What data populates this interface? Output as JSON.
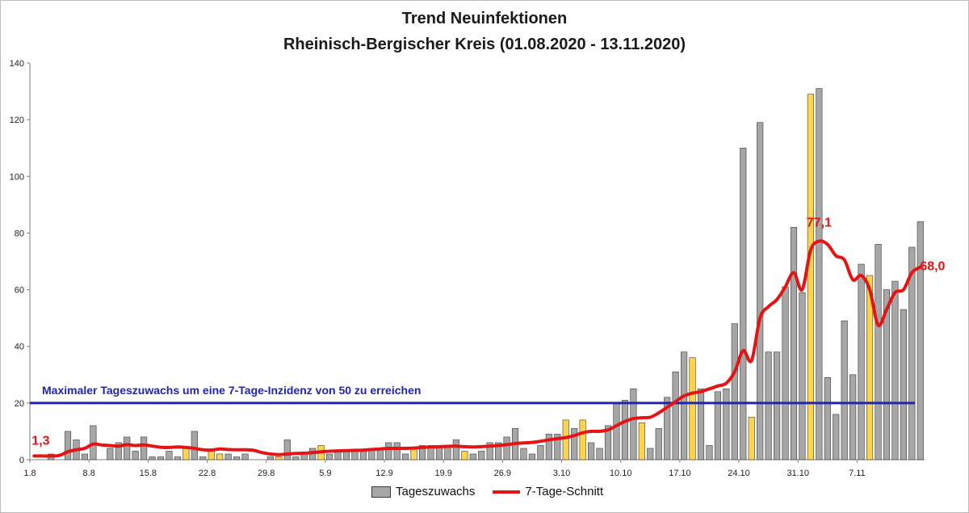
{
  "chart_data": {
    "type": "bar",
    "title": "Trend Neuinfektionen",
    "subtitle": "Rheinisch-Bergischer Kreis (01.08.2020 - 13.11.2020)",
    "ylim": [
      0,
      140
    ],
    "y_ticks": [
      "0",
      "20",
      "40",
      "60",
      "80",
      "100",
      "120",
      "140"
    ],
    "x_tick_labels": [
      "1.8",
      "8.8",
      "15.8",
      "22.8",
      "29.8",
      "5.9",
      "12.9",
      "19.9",
      "26.9",
      "3.10",
      "10.10",
      "17.10",
      "24.10",
      "31.10",
      "7.11"
    ],
    "x_tick_day_index": [
      0,
      7,
      14,
      21,
      28,
      35,
      42,
      49,
      56,
      63,
      70,
      77,
      84,
      91,
      98
    ],
    "x_start_date": "01.08.2020",
    "series": [
      {
        "name": "Tageszuwachs",
        "kind": "bar",
        "color": "#a6a6a6",
        "values": [
          0,
          0,
          2,
          0,
          10,
          7,
          2,
          12,
          0,
          4,
          6,
          8,
          3,
          8,
          1,
          1,
          3,
          1,
          4,
          10,
          1,
          3,
          2,
          2,
          1,
          2,
          0,
          0,
          1,
          1,
          7,
          1,
          2,
          4,
          5,
          2,
          3,
          3,
          3,
          3,
          4,
          4,
          6,
          6,
          2,
          4,
          5,
          5,
          5,
          5,
          7,
          3,
          2,
          3,
          6,
          6,
          8,
          11,
          4,
          2,
          5,
          9,
          9,
          14,
          11,
          14,
          6,
          4,
          12,
          20,
          21,
          25,
          13,
          4,
          11,
          22,
          31,
          38,
          36,
          25,
          5,
          24,
          25,
          48,
          110,
          15,
          119,
          38,
          38,
          61,
          82,
          59,
          129,
          131,
          29,
          16,
          49,
          30,
          69,
          65,
          76,
          60,
          63,
          53,
          75,
          84
        ]
      },
      {
        "name": "7-Tage-Schnitt",
        "kind": "line",
        "color": "#e31414",
        "values": [
          1.3,
          1.3,
          1.3,
          1.5,
          2.8,
          3.5,
          4.0,
          5.5,
          5.2,
          5.0,
          4.8,
          5.3,
          5.0,
          5.2,
          4.8,
          4.4,
          4.3,
          4.5,
          4.3,
          4.0,
          3.5,
          3.4,
          3.8,
          3.6,
          3.5,
          3.5,
          3.3,
          2.5,
          2.0,
          1.8,
          2.0,
          2.2,
          2.3,
          2.5,
          2.8,
          3.0,
          3.1,
          3.2,
          3.3,
          3.4,
          3.6,
          3.8,
          4.0,
          4.0,
          4.0,
          4.1,
          4.3,
          4.5,
          4.6,
          4.7,
          4.8,
          4.6,
          4.5,
          4.6,
          4.8,
          5.0,
          5.3,
          5.7,
          5.9,
          6.1,
          6.5,
          7.0,
          7.4,
          7.8,
          8.5,
          9.5,
          10.0,
          10.0,
          10.5,
          12.0,
          13.5,
          14.5,
          14.8,
          15.0,
          16.5,
          18.5,
          20.5,
          22.5,
          23.5,
          24.0,
          25.0,
          26.0,
          27.0,
          31.0,
          38.5,
          35.0,
          50.0,
          54.0,
          56.5,
          61.0,
          66.0,
          60.0,
          74.0,
          77.1,
          76.0,
          72.0,
          70.5,
          63.5,
          65.0,
          60.0,
          47.5,
          53.0,
          59.0,
          60.0,
          66.0,
          68.0
        ]
      }
    ],
    "reference_line": {
      "label": "Maximaler Tageszuwachs um eine 7-Tage-Inzidenz von 50 zu erreichen",
      "value": 20,
      "color": "#1f24b8"
    },
    "highlighted_bar_color": "#ffd34d",
    "highlighted_bar_indices": [
      18,
      21,
      22,
      29,
      34,
      45,
      51,
      63,
      65,
      72,
      78,
      85,
      92,
      99
    ],
    "annotations": [
      {
        "text": "1,3",
        "day_index": 0,
        "value": 1.3
      },
      {
        "text": "77,1",
        "day_index": 93,
        "value": 77.1
      },
      {
        "text": "68,0",
        "day_index": 104,
        "value": 68.0
      }
    ],
    "legend": [
      "Tageszuwachs",
      "7-Tage-Schnitt"
    ],
    "legend_position": "bottom",
    "grid": false
  },
  "legend_labels": {
    "bars": "Tageszuwachs",
    "line": "7-Tage-Schnitt"
  }
}
